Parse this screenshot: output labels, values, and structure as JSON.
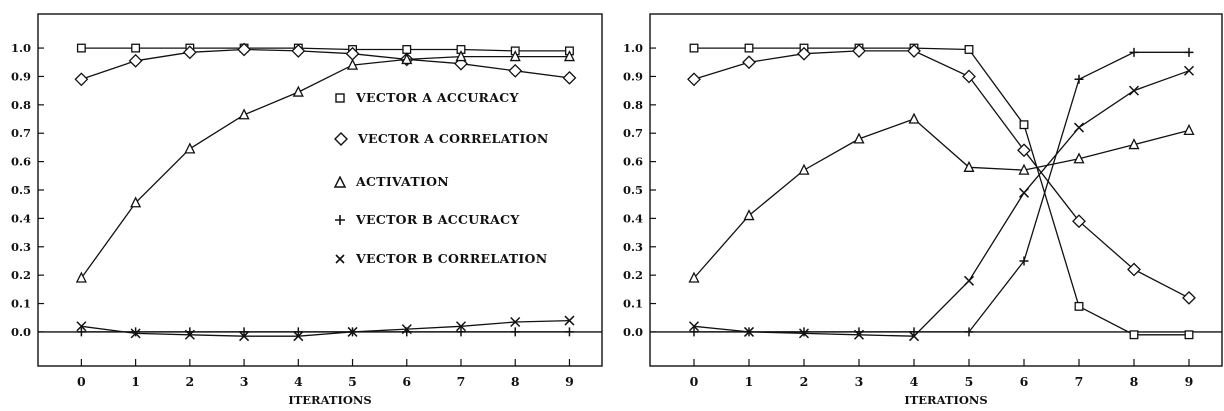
{
  "chart_data": [
    {
      "type": "line",
      "xlabel": "ITERATIONS",
      "ylabel": "",
      "x": [
        0,
        1,
        2,
        3,
        4,
        5,
        6,
        7,
        8,
        9
      ],
      "xlim": [
        -0.8,
        9.6
      ],
      "ylim": [
        -0.12,
        1.12
      ],
      "yticks": [
        0.0,
        0.1,
        0.2,
        0.3,
        0.4,
        0.5,
        0.6,
        0.7,
        0.8,
        0.9,
        1.0
      ],
      "ytick_labels": [
        "0.0",
        "0.1",
        "0.2",
        "0.3",
        "0.4",
        "0.5",
        "0.6",
        "0.7",
        "0.8",
        "0.9",
        "1.0"
      ],
      "xtick_labels": [
        "0",
        "1",
        "2",
        "3",
        "4",
        "5",
        "6",
        "7",
        "8",
        "9"
      ],
      "legend_placement": "center-right",
      "grid": false,
      "series": [
        {
          "name": "VECTOR A ACCURACY",
          "marker": "square",
          "values": [
            1.0,
            1.0,
            1.0,
            1.0,
            1.0,
            0.995,
            0.995,
            0.995,
            0.99,
            0.99
          ]
        },
        {
          "name": "VECTOR A CORRELATION",
          "marker": "diamond",
          "values": [
            0.89,
            0.955,
            0.985,
            0.995,
            0.99,
            0.98,
            0.96,
            0.945,
            0.92,
            0.895
          ]
        },
        {
          "name": "ACTIVATION",
          "marker": "triangle",
          "values": [
            0.19,
            0.455,
            0.645,
            0.765,
            0.845,
            0.94,
            0.96,
            0.97,
            0.97,
            0.97
          ]
        },
        {
          "name": "VECTOR B ACCURACY",
          "marker": "plus",
          "values": [
            0.0,
            0.0,
            0.0,
            0.0,
            0.0,
            0.0,
            0.0,
            0.0,
            0.0,
            0.0
          ]
        },
        {
          "name": "VECTOR B CORRELATION",
          "marker": "x",
          "values": [
            0.02,
            -0.005,
            -0.01,
            -0.015,
            -0.015,
            0.0,
            0.01,
            0.02,
            0.035,
            0.04
          ]
        }
      ]
    },
    {
      "type": "line",
      "xlabel": "ITERATIONS",
      "ylabel": "",
      "x": [
        0,
        1,
        2,
        3,
        4,
        5,
        6,
        7,
        8,
        9
      ],
      "xlim": [
        -0.8,
        9.6
      ],
      "ylim": [
        -0.12,
        1.12
      ],
      "yticks": [
        0.0,
        0.1,
        0.2,
        0.3,
        0.4,
        0.5,
        0.6,
        0.7,
        0.8,
        0.9,
        1.0
      ],
      "ytick_labels": [
        "0.0",
        "0.1",
        "0.2",
        "0.3",
        "0.4",
        "0.5",
        "0.6",
        "0.7",
        "0.8",
        "0.9",
        "1.0"
      ],
      "xtick_labels": [
        "0",
        "1",
        "2",
        "3",
        "4",
        "5",
        "6",
        "7",
        "8",
        "9"
      ],
      "legend_placement": "none",
      "grid": false,
      "series": [
        {
          "marker": "square",
          "values": [
            1.0,
            1.0,
            1.0,
            1.0,
            1.0,
            0.995,
            0.73,
            0.09,
            -0.01,
            -0.01
          ]
        },
        {
          "marker": "diamond",
          "values": [
            0.89,
            0.95,
            0.98,
            0.99,
            0.99,
            0.9,
            0.64,
            0.39,
            0.22,
            0.12
          ]
        },
        {
          "marker": "triangle",
          "values": [
            0.19,
            0.41,
            0.57,
            0.68,
            0.75,
            0.58,
            0.57,
            0.61,
            0.66,
            0.71
          ]
        },
        {
          "marker": "plus",
          "values": [
            0.0,
            0.0,
            0.0,
            0.0,
            0.0,
            0.0,
            0.25,
            0.89,
            0.985,
            0.985
          ]
        },
        {
          "marker": "x",
          "values": [
            0.02,
            0.0,
            -0.005,
            -0.01,
            -0.015,
            0.18,
            0.49,
            0.72,
            0.85,
            0.92
          ]
        }
      ]
    }
  ]
}
